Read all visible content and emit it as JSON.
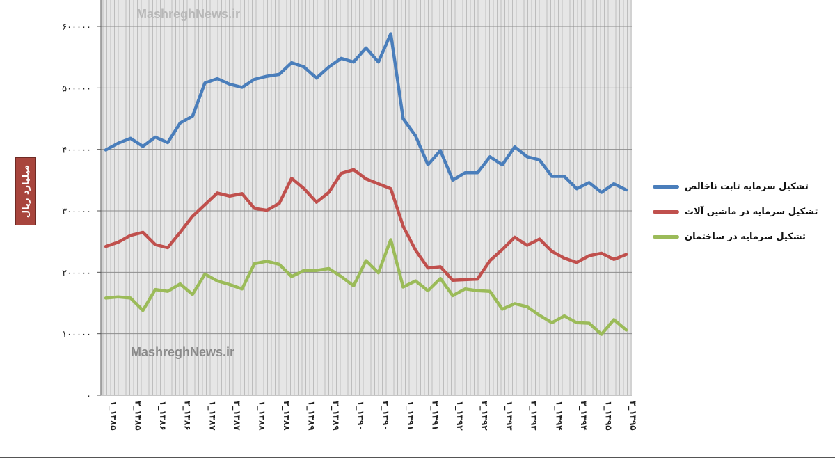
{
  "watermark": "MashreghNews.ir",
  "chart_data": {
    "type": "line",
    "ylabel": "میلیارد ریال",
    "ylim": [
      0,
      600000
    ],
    "yticks": [
      0,
      100000,
      200000,
      300000,
      400000,
      500000,
      600000
    ],
    "ytick_labels": [
      "۰",
      "۱۰۰۰۰۰",
      "۲۰۰۰۰۰",
      "۳۰۰۰۰۰",
      "۴۰۰۰۰۰",
      "۵۰۰۰۰۰",
      "۶۰۰۰۰۰"
    ],
    "x_tick_labels": [
      "۱_۱۳۸۵",
      "۳_۱۳۸۵",
      "۱_۱۳۸۶",
      "۳_۱۳۸۶",
      "۱_۱۳۸۷",
      "۳_۱۳۸۷",
      "۱_۱۳۸۸",
      "۳_۱۳۸۸",
      "۱_۱۳۸۹",
      "۳_۱۳۸۹",
      "۱_۱۳۹۰",
      "۳_۱۳۹۰",
      "۱_۱۳۹۱",
      "۳_۱۳۹۱",
      "۱_۱۳۹۲",
      "۳_۱۳۹۲",
      "۱_۱۳۹۳",
      "۳_۱۳۹۳",
      "۱_۱۳۹۴",
      "۳_۱۳۹۴",
      "۱_۱۳۹۵",
      "۳_۱۳۹۵"
    ],
    "grid": true,
    "legend_position": "right",
    "series": [
      {
        "name": "تشکیل سرمایه ثابت ناخالص",
        "color": "#4a7ebb",
        "values": [
          399000,
          410000,
          418000,
          405000,
          420000,
          411000,
          443000,
          454000,
          508000,
          515000,
          506000,
          501000,
          514000,
          519000,
          522000,
          541000,
          534000,
          516000,
          534000,
          548000,
          542000,
          565000,
          542000,
          588000,
          450000,
          422000,
          375000,
          398000,
          350000,
          362000,
          362000,
          388000,
          375000,
          404000,
          388000,
          383000,
          356000,
          356000,
          336000,
          346000,
          330000,
          344000,
          334000
        ]
      },
      {
        "name": "تشکیل سرمایه در ماشین آلات",
        "color": "#c0504d",
        "values": [
          242000,
          249000,
          260000,
          265000,
          245000,
          240000,
          265000,
          291000,
          310000,
          329000,
          324000,
          328000,
          304000,
          301000,
          312000,
          353000,
          336000,
          314000,
          330000,
          361000,
          367000,
          352000,
          344000,
          336000,
          275000,
          236000,
          207000,
          209000,
          187000,
          188000,
          189000,
          219000,
          237000,
          257000,
          244000,
          254000,
          234000,
          223000,
          216000,
          227000,
          231000,
          221000,
          229000
        ]
      },
      {
        "name": "تشکیل سرمایه در ساختمان",
        "color": "#9bbb59",
        "values": [
          158000,
          160000,
          158000,
          138000,
          172000,
          169000,
          181000,
          164000,
          197000,
          186000,
          180000,
          173000,
          214000,
          218000,
          213000,
          193000,
          203000,
          203000,
          206000,
          193000,
          178000,
          219000,
          199000,
          253000,
          176000,
          186000,
          170000,
          190000,
          162000,
          173000,
          170000,
          169000,
          140000,
          149000,
          144000,
          130000,
          118000,
          129000,
          118000,
          117000,
          99000,
          123000,
          106000
        ]
      }
    ]
  }
}
